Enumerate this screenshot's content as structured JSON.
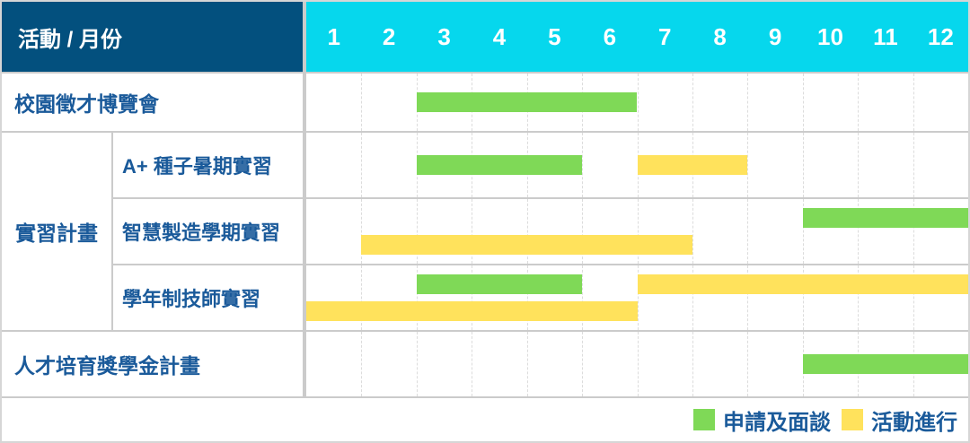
{
  "colors": {
    "header_bg": "#03507E",
    "months_bg": "#06D7ED",
    "green": "#7FD957",
    "yellow": "#FFE25C",
    "label_text": "#1A5A9A",
    "grid_line": "#CBCBCB"
  },
  "header": {
    "label": "活動 / 月份"
  },
  "chart_data": {
    "type": "gantt",
    "title": "活動 / 月份",
    "months": [
      "1",
      "2",
      "3",
      "4",
      "5",
      "6",
      "7",
      "8",
      "9",
      "10",
      "11",
      "12"
    ],
    "group_label": "實習計畫",
    "rows": [
      {
        "id": "career-fair",
        "label": "校園徵才博覽會",
        "group": null,
        "lanes": [
          [
            {
              "color": "green",
              "start": 3,
              "end": 6
            }
          ]
        ]
      },
      {
        "id": "aplus-summer-internship",
        "label": "A+ 種子暑期實習",
        "group": "實習計畫",
        "lanes": [
          [
            {
              "color": "green",
              "start": 3,
              "end": 5
            },
            {
              "color": "yellow",
              "start": 7,
              "end": 8
            }
          ]
        ]
      },
      {
        "id": "smart-mfg-semester-internship",
        "label": "智慧製造學期實習",
        "group": "實習計畫",
        "lanes": [
          [
            {
              "color": "green",
              "start": 10,
              "end": 12
            }
          ],
          [
            {
              "color": "yellow",
              "start": 2,
              "end": 7
            }
          ]
        ]
      },
      {
        "id": "year-round-technician-internship",
        "label": "學年制技師實習",
        "group": "實習計畫",
        "lanes": [
          [
            {
              "color": "green",
              "start": 3,
              "end": 5
            },
            {
              "color": "yellow",
              "start": 7,
              "end": 12
            }
          ],
          [
            {
              "color": "yellow",
              "start": 1,
              "end": 6
            }
          ]
        ]
      },
      {
        "id": "scholarship-program",
        "label": "人才培育獎學金計畫",
        "group": null,
        "lanes": [
          [
            {
              "color": "green",
              "start": 10,
              "end": 12
            }
          ]
        ]
      }
    ],
    "legend": [
      {
        "color_key": "green",
        "label": "申請及面談"
      },
      {
        "color_key": "yellow",
        "label": "活動進行"
      }
    ]
  }
}
